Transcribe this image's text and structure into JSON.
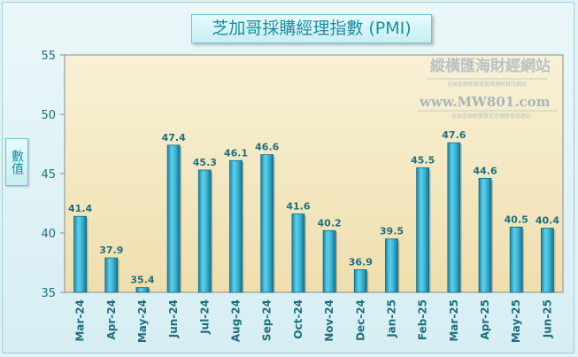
{
  "chart_data": {
    "type": "bar",
    "title": "芝加哥採購經理指數 (PMI)",
    "ylabel": "數值",
    "xlabel": "",
    "categories": [
      "Mar-24",
      "Apr-24",
      "May-24",
      "Jun-24",
      "Jul-24",
      "Aug-24",
      "Sep-24",
      "Oct-24",
      "Nov-24",
      "Dec-24",
      "Jan-25",
      "Feb-25",
      "Mar-25",
      "Apr-25",
      "May-25",
      "Jun-25"
    ],
    "values": [
      41.4,
      37.9,
      35.4,
      47.4,
      45.3,
      46.1,
      46.6,
      41.6,
      40.2,
      36.9,
      39.5,
      45.5,
      47.6,
      44.6,
      40.5,
      40.4
    ],
    "ylim": [
      35,
      55
    ],
    "yticks": [
      35,
      40,
      45,
      50,
      55
    ],
    "grid": false,
    "legend": "none",
    "bar_color": "#2fa7c9"
  },
  "watermark": {
    "site_name": "縱橫匯海財經網站",
    "site_tagline": "全球金融新聞暨投資理財資訊網站",
    "url": "www.MW801.com",
    "url_tagline": "全球金融新聞暨投資理財資訊網站"
  }
}
